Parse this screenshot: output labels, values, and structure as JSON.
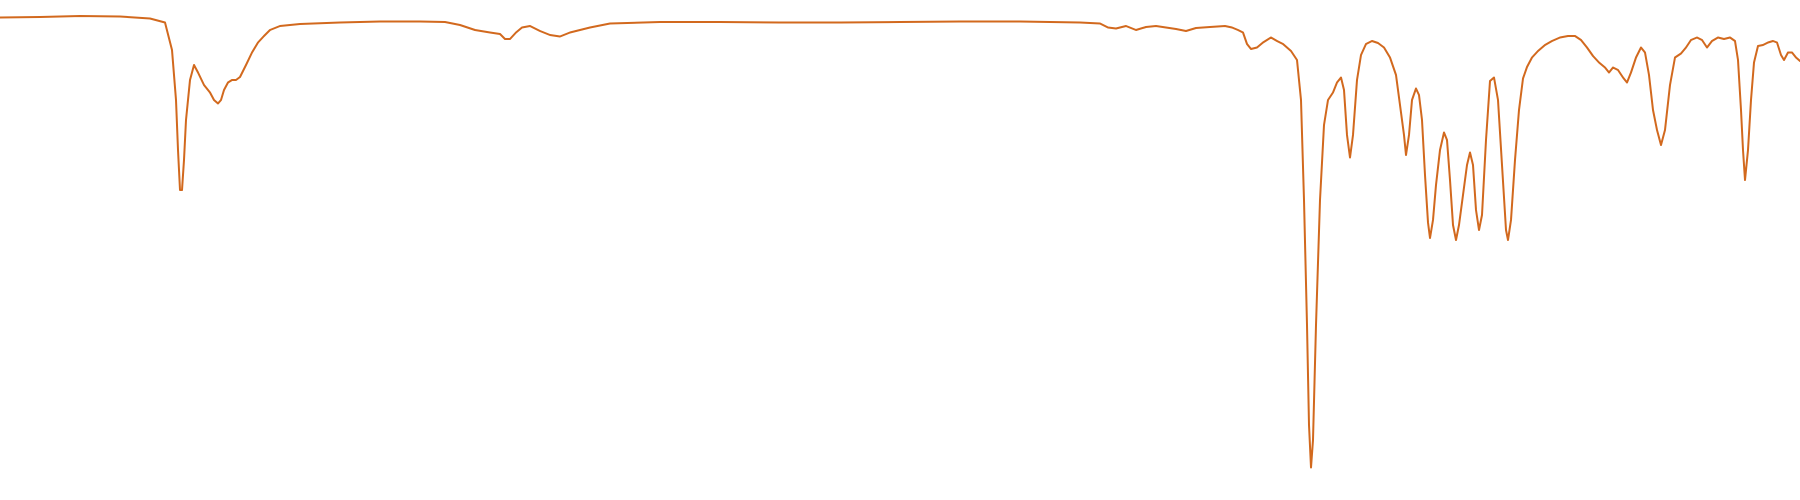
{
  "chart_data": {
    "type": "line",
    "title": "",
    "xlabel": "",
    "ylabel": "",
    "grid": false,
    "legend": "none",
    "axes_visible": false,
    "x_range": [
      0,
      1800
    ],
    "y_range": [
      0,
      1
    ],
    "series": [
      {
        "color": "#d2691e",
        "points": [
          [
            0,
            0.965
          ],
          [
            40,
            0.966
          ],
          [
            80,
            0.968
          ],
          [
            120,
            0.967
          ],
          [
            150,
            0.963
          ],
          [
            165,
            0.955
          ],
          [
            172,
            0.9
          ],
          [
            176,
            0.8
          ],
          [
            178,
            0.7
          ],
          [
            180,
            0.62
          ],
          [
            182,
            0.62
          ],
          [
            184,
            0.68
          ],
          [
            186,
            0.76
          ],
          [
            190,
            0.84
          ],
          [
            194,
            0.87
          ],
          [
            198,
            0.855
          ],
          [
            204,
            0.83
          ],
          [
            210,
            0.815
          ],
          [
            214,
            0.8
          ],
          [
            218,
            0.793
          ],
          [
            221,
            0.8
          ],
          [
            224,
            0.82
          ],
          [
            228,
            0.835
          ],
          [
            232,
            0.84
          ],
          [
            236,
            0.84
          ],
          [
            240,
            0.846
          ],
          [
            246,
            0.87
          ],
          [
            252,
            0.895
          ],
          [
            258,
            0.915
          ],
          [
            264,
            0.928
          ],
          [
            270,
            0.94
          ],
          [
            280,
            0.948
          ],
          [
            300,
            0.952
          ],
          [
            340,
            0.955
          ],
          [
            380,
            0.957
          ],
          [
            420,
            0.957
          ],
          [
            445,
            0.956
          ],
          [
            460,
            0.95
          ],
          [
            475,
            0.94
          ],
          [
            490,
            0.935
          ],
          [
            500,
            0.932
          ],
          [
            505,
            0.922
          ],
          [
            510,
            0.922
          ],
          [
            516,
            0.935
          ],
          [
            522,
            0.945
          ],
          [
            530,
            0.948
          ],
          [
            540,
            0.938
          ],
          [
            550,
            0.93
          ],
          [
            560,
            0.927
          ],
          [
            570,
            0.935
          ],
          [
            590,
            0.945
          ],
          [
            610,
            0.953
          ],
          [
            660,
            0.956
          ],
          [
            720,
            0.956
          ],
          [
            780,
            0.955
          ],
          [
            840,
            0.955
          ],
          [
            900,
            0.956
          ],
          [
            960,
            0.957
          ],
          [
            1020,
            0.957
          ],
          [
            1080,
            0.955
          ],
          [
            1100,
            0.953
          ],
          [
            1108,
            0.945
          ],
          [
            1116,
            0.943
          ],
          [
            1126,
            0.948
          ],
          [
            1136,
            0.94
          ],
          [
            1146,
            0.946
          ],
          [
            1156,
            0.948
          ],
          [
            1166,
            0.945
          ],
          [
            1176,
            0.942
          ],
          [
            1186,
            0.938
          ],
          [
            1196,
            0.944
          ],
          [
            1210,
            0.946
          ],
          [
            1225,
            0.948
          ],
          [
            1232,
            0.945
          ],
          [
            1238,
            0.94
          ],
          [
            1243,
            0.935
          ],
          [
            1247,
            0.912
          ],
          [
            1251,
            0.902
          ],
          [
            1257,
            0.905
          ],
          [
            1263,
            0.915
          ],
          [
            1271,
            0.925
          ],
          [
            1277,
            0.918
          ],
          [
            1283,
            0.912
          ],
          [
            1291,
            0.898
          ],
          [
            1297,
            0.88
          ],
          [
            1301,
            0.8
          ],
          [
            1304,
            0.6
          ],
          [
            1307,
            0.35
          ],
          [
            1309,
            0.15
          ],
          [
            1311,
            0.065
          ],
          [
            1313,
            0.12
          ],
          [
            1316,
            0.35
          ],
          [
            1320,
            0.6
          ],
          [
            1324,
            0.75
          ],
          [
            1328,
            0.8
          ],
          [
            1333,
            0.815
          ],
          [
            1337,
            0.835
          ],
          [
            1341,
            0.845
          ],
          [
            1344,
            0.82
          ],
          [
            1347,
            0.73
          ],
          [
            1350,
            0.685
          ],
          [
            1353,
            0.73
          ],
          [
            1357,
            0.84
          ],
          [
            1361,
            0.89
          ],
          [
            1366,
            0.912
          ],
          [
            1372,
            0.918
          ],
          [
            1378,
            0.914
          ],
          [
            1384,
            0.905
          ],
          [
            1390,
            0.885
          ],
          [
            1396,
            0.85
          ],
          [
            1400,
            0.79
          ],
          [
            1404,
            0.73
          ],
          [
            1406,
            0.69
          ],
          [
            1409,
            0.73
          ],
          [
            1412,
            0.8
          ],
          [
            1416,
            0.823
          ],
          [
            1419,
            0.81
          ],
          [
            1422,
            0.76
          ],
          [
            1425,
            0.65
          ],
          [
            1428,
            0.555
          ],
          [
            1430,
            0.524
          ],
          [
            1433,
            0.56
          ],
          [
            1436,
            0.63
          ],
          [
            1440,
            0.7
          ],
          [
            1444,
            0.735
          ],
          [
            1447,
            0.72
          ],
          [
            1450,
            0.64
          ],
          [
            1453,
            0.55
          ],
          [
            1456,
            0.52
          ],
          [
            1459,
            0.55
          ],
          [
            1463,
            0.61
          ],
          [
            1467,
            0.67
          ],
          [
            1470,
            0.695
          ],
          [
            1473,
            0.67
          ],
          [
            1476,
            0.58
          ],
          [
            1479,
            0.54
          ],
          [
            1482,
            0.57
          ],
          [
            1486,
            0.72
          ],
          [
            1490,
            0.838
          ],
          [
            1494,
            0.845
          ],
          [
            1498,
            0.8
          ],
          [
            1502,
            0.67
          ],
          [
            1506,
            0.54
          ],
          [
            1508,
            0.52
          ],
          [
            1511,
            0.56
          ],
          [
            1515,
            0.68
          ],
          [
            1519,
            0.78
          ],
          [
            1523,
            0.843
          ],
          [
            1527,
            0.866
          ],
          [
            1532,
            0.885
          ],
          [
            1538,
            0.898
          ],
          [
            1545,
            0.91
          ],
          [
            1552,
            0.918
          ],
          [
            1560,
            0.925
          ],
          [
            1568,
            0.928
          ],
          [
            1575,
            0.928
          ],
          [
            1581,
            0.92
          ],
          [
            1587,
            0.905
          ],
          [
            1593,
            0.888
          ],
          [
            1599,
            0.875
          ],
          [
            1605,
            0.865
          ],
          [
            1609,
            0.855
          ],
          [
            1613,
            0.865
          ],
          [
            1618,
            0.86
          ],
          [
            1623,
            0.845
          ],
          [
            1627,
            0.835
          ],
          [
            1631,
            0.855
          ],
          [
            1636,
            0.885
          ],
          [
            1641,
            0.905
          ],
          [
            1645,
            0.895
          ],
          [
            1649,
            0.85
          ],
          [
            1653,
            0.78
          ],
          [
            1657,
            0.74
          ],
          [
            1661,
            0.71
          ],
          [
            1665,
            0.74
          ],
          [
            1670,
            0.83
          ],
          [
            1675,
            0.885
          ],
          [
            1681,
            0.893
          ],
          [
            1686,
            0.905
          ],
          [
            1691,
            0.92
          ],
          [
            1697,
            0.925
          ],
          [
            1702,
            0.92
          ],
          [
            1707,
            0.905
          ],
          [
            1712,
            0.918
          ],
          [
            1718,
            0.925
          ],
          [
            1724,
            0.922
          ],
          [
            1730,
            0.925
          ],
          [
            1735,
            0.918
          ],
          [
            1738,
            0.88
          ],
          [
            1741,
            0.78
          ],
          [
            1743,
            0.7
          ],
          [
            1745,
            0.64
          ],
          [
            1748,
            0.7
          ],
          [
            1751,
            0.8
          ],
          [
            1754,
            0.875
          ],
          [
            1758,
            0.908
          ],
          [
            1763,
            0.91
          ],
          [
            1768,
            0.915
          ],
          [
            1773,
            0.918
          ],
          [
            1777,
            0.915
          ],
          [
            1781,
            0.89
          ],
          [
            1784,
            0.88
          ],
          [
            1788,
            0.895
          ],
          [
            1792,
            0.895
          ],
          [
            1796,
            0.885
          ],
          [
            1800,
            0.878
          ]
        ]
      }
    ]
  }
}
